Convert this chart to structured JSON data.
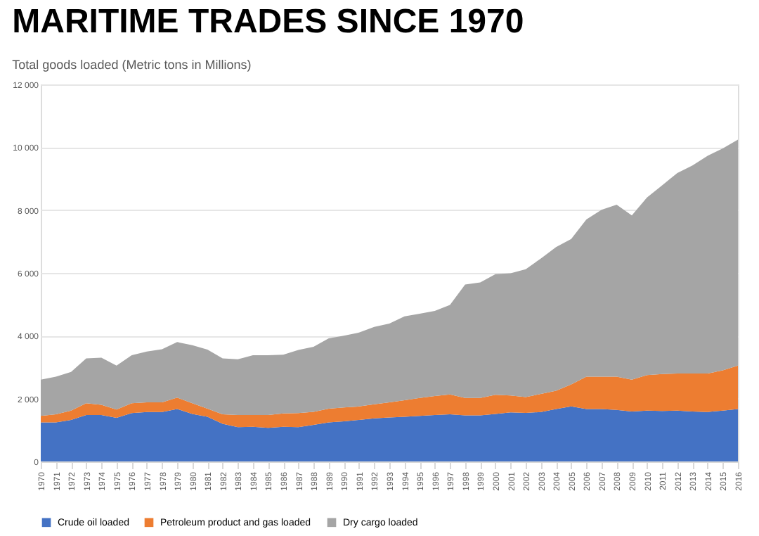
{
  "chart_data": {
    "type": "area",
    "stacked": true,
    "title": "MARITIME TRADES SINCE 1970",
    "subtitle": "Total goods loaded (Metric tons in Millions)",
    "categories": [
      "1970",
      "1971",
      "1972",
      "1973",
      "1974",
      "1975",
      "1976",
      "1977",
      "1978",
      "1979",
      "1980",
      "1981",
      "1982",
      "1983",
      "1984",
      "1985",
      "1986",
      "1987",
      "1988",
      "1989",
      "1990",
      "1991",
      "1992",
      "1993",
      "1994",
      "1995",
      "1996",
      "1997",
      "1998",
      "1999",
      "2000",
      "2001",
      "2002",
      "2003",
      "2004",
      "2005",
      "2006",
      "2007",
      "2008",
      "2009",
      "2010",
      "2011",
      "2012",
      "2013",
      "2014",
      "2015",
      "2016"
    ],
    "series": [
      {
        "name": "Crude oil loaded",
        "color": "#4472c4",
        "values": [
          1244,
          1244,
          1320,
          1480,
          1480,
          1390,
          1540,
          1575,
          1575,
          1670,
          1510,
          1420,
          1200,
          1090,
          1100,
          1070,
          1100,
          1090,
          1165,
          1245,
          1275,
          1320,
          1370,
          1400,
          1420,
          1450,
          1480,
          1500,
          1465,
          1465,
          1510,
          1560,
          1545,
          1575,
          1670,
          1750,
          1670,
          1670,
          1640,
          1590,
          1620,
          1605,
          1620,
          1590,
          1575,
          1620,
          1670
        ]
      },
      {
        "name": "Petroleum product and gas loaded",
        "color": "#ed7d31",
        "values": [
          206,
          256,
          300,
          370,
          320,
          260,
          310,
          305,
          305,
          360,
          340,
          260,
          300,
          390,
          380,
          410,
          430,
          450,
          415,
          435,
          445,
          430,
          450,
          480,
          530,
          570,
          600,
          630,
          555,
          555,
          610,
          540,
          505,
          575,
          580,
          700,
          1030,
          1030,
          1060,
          1010,
          1130,
          1175,
          1180,
          1210,
          1225,
          1280,
          1380
        ]
      },
      {
        "name": "Dry cargo loaded",
        "color": "#a5a5a5",
        "values": [
          1150,
          1200,
          1230,
          1430,
          1500,
          1400,
          1530,
          1620,
          1690,
          1770,
          1850,
          1880,
          1780,
          1770,
          1900,
          1900,
          1870,
          2010,
          2070,
          2240,
          2280,
          2350,
          2460,
          2510,
          2670,
          2680,
          2710,
          2850,
          3610,
          3680,
          3840,
          3890,
          4070,
          4310,
          4570,
          4630,
          5000,
          5310,
          5470,
          5230,
          5650,
          6010,
          6380,
          6620,
          6930,
          7060,
          7190
        ]
      }
    ],
    "ylim": [
      0,
      12000
    ],
    "yticks": [
      0,
      {
        "value": 2000,
        "label": "2 000"
      },
      {
        "value": 4000,
        "label": "4 000"
      },
      {
        "value": 6000,
        "label": "6 000"
      },
      {
        "value": 8000,
        "label": "8 000"
      },
      {
        "value": 10000,
        "label": "10 000"
      },
      {
        "value": 12000,
        "label": "12 000"
      }
    ],
    "grid": "y",
    "legend": "bottom"
  }
}
